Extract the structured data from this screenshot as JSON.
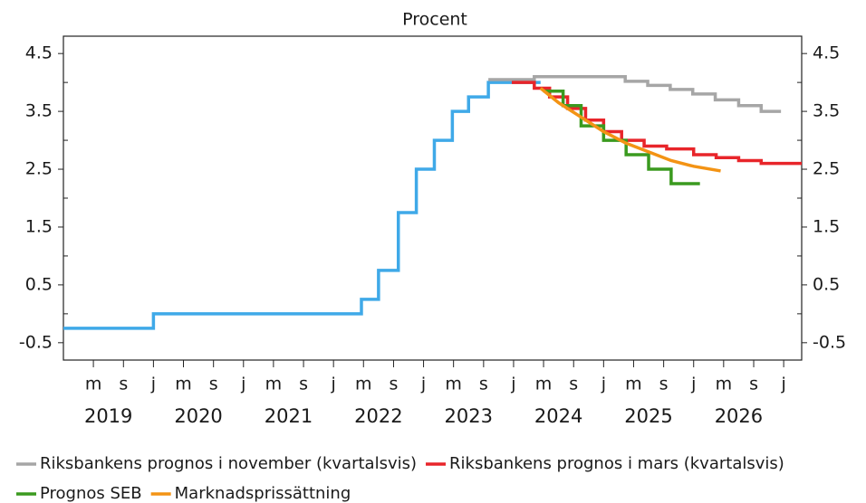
{
  "chart_data": {
    "type": "line",
    "subtitle": "Procent",
    "xlim": [
      2019.0,
      2027.2
    ],
    "xticks": [
      {
        "value": 2019.333,
        "label": "m"
      },
      {
        "value": 2019.667,
        "label": "s"
      },
      {
        "value": 2020.0,
        "label": "j"
      },
      {
        "value": 2020.333,
        "label": "m"
      },
      {
        "value": 2020.667,
        "label": "s"
      },
      {
        "value": 2021.0,
        "label": "j"
      },
      {
        "value": 2021.333,
        "label": "m"
      },
      {
        "value": 2021.667,
        "label": "s"
      },
      {
        "value": 2022.0,
        "label": "j"
      },
      {
        "value": 2022.333,
        "label": "m"
      },
      {
        "value": 2022.667,
        "label": "s"
      },
      {
        "value": 2023.0,
        "label": "j"
      },
      {
        "value": 2023.333,
        "label": "m"
      },
      {
        "value": 2023.667,
        "label": "s"
      },
      {
        "value": 2024.0,
        "label": "j"
      },
      {
        "value": 2024.333,
        "label": "m"
      },
      {
        "value": 2024.667,
        "label": "s"
      },
      {
        "value": 2025.0,
        "label": "j"
      },
      {
        "value": 2025.333,
        "label": "m"
      },
      {
        "value": 2025.667,
        "label": "s"
      },
      {
        "value": 2026.0,
        "label": "j"
      },
      {
        "value": 2026.333,
        "label": "m"
      },
      {
        "value": 2026.667,
        "label": "s"
      },
      {
        "value": 2027.0,
        "label": "j"
      }
    ],
    "year_labels": [
      {
        "value": 2019.5,
        "label": "2019"
      },
      {
        "value": 2020.5,
        "label": "2020"
      },
      {
        "value": 2021.5,
        "label": "2021"
      },
      {
        "value": 2022.5,
        "label": "2022"
      },
      {
        "value": 2023.5,
        "label": "2023"
      },
      {
        "value": 2024.5,
        "label": "2024"
      },
      {
        "value": 2025.5,
        "label": "2025"
      },
      {
        "value": 2026.5,
        "label": "2026"
      }
    ],
    "ylim": [
      -0.8,
      4.8
    ],
    "yticks": [
      4.5,
      3.5,
      2.5,
      1.5,
      0.5,
      -0.5
    ],
    "yminorticks": [
      4,
      3,
      2,
      1,
      0
    ],
    "grid": false,
    "legend": "bottom",
    "series": [
      {
        "name": null,
        "color": "#3fa9e8",
        "step": true,
        "x": [
          2019.0,
          2020.0,
          2022.31,
          2022.5,
          2022.72,
          2022.92,
          2023.12,
          2023.32,
          2023.5,
          2023.72,
          2024.3
        ],
        "values": [
          -0.25,
          0,
          0.25,
          0.75,
          1.75,
          2.5,
          3.0,
          3.5,
          3.75,
          4.0,
          4.0
        ]
      },
      {
        "name": "Riksbankens prognos i november (kvartalsvis)",
        "color": "#a6a6a6",
        "step": true,
        "x": [
          2023.72,
          2024.23,
          2025.24,
          2025.49,
          2025.74,
          2025.99,
          2026.24,
          2026.5,
          2026.75,
          2026.97
        ],
        "values": [
          4.05,
          4.1,
          4.02,
          3.95,
          3.88,
          3.8,
          3.7,
          3.6,
          3.5,
          3.5
        ]
      },
      {
        "name": "Riksbankens prognos i mars (kvartalsvis)",
        "color": "#e8252a",
        "step": true,
        "x": [
          2023.98,
          2024.23,
          2024.4,
          2024.6,
          2024.8,
          2025.0,
          2025.2,
          2025.45,
          2025.7,
          2026.0,
          2026.25,
          2026.5,
          2026.75,
          2027.2
        ],
        "values": [
          4.0,
          3.9,
          3.75,
          3.55,
          3.35,
          3.15,
          3.0,
          2.9,
          2.85,
          2.75,
          2.7,
          2.65,
          2.6,
          2.6
        ]
      },
      {
        "name": "Prognos SEB",
        "color": "#3a9a1f",
        "step": true,
        "x": [
          2024.33,
          2024.55,
          2024.75,
          2025.0,
          2025.25,
          2025.5,
          2025.75,
          2026.07
        ],
        "values": [
          3.85,
          3.6,
          3.25,
          3.0,
          2.75,
          2.5,
          2.25,
          2.25
        ]
      },
      {
        "name": "Marknadsprissättning",
        "color": "#f39314",
        "step": false,
        "x": [
          2024.3,
          2024.5,
          2024.75,
          2025.0,
          2025.25,
          2025.5,
          2025.75,
          2026.0,
          2026.3
        ],
        "values": [
          3.9,
          3.65,
          3.4,
          3.15,
          2.95,
          2.8,
          2.65,
          2.55,
          2.47
        ]
      }
    ]
  }
}
